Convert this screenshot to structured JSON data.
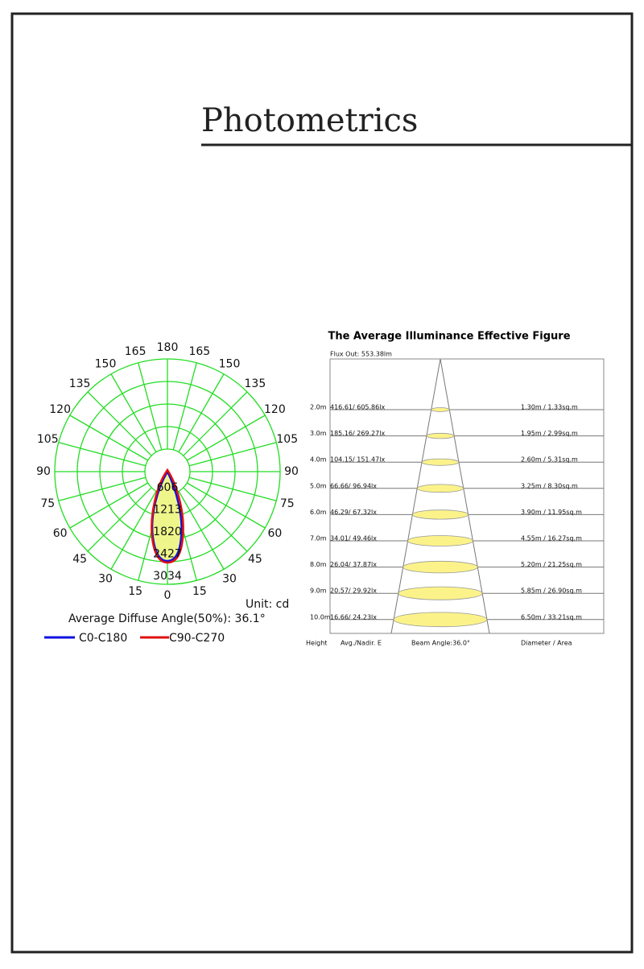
{
  "header": {
    "title": "Photometrics"
  },
  "polar": {
    "angle_labels": [
      "0",
      "15",
      "30",
      "45",
      "60",
      "75",
      "90",
      "105",
      "120",
      "135",
      "150",
      "165",
      "180"
    ],
    "ring_labels": [
      "606",
      "1213",
      "1820",
      "2427",
      "3034"
    ],
    "unit": "Unit: cd",
    "diffuse_angle": "Average Diffuse Angle(50%): 36.1°",
    "legend": [
      "C0-C180",
      "C90-C270"
    ]
  },
  "illuminance": {
    "title": "The Average Illuminance Effective Figure",
    "flux": "Flux Out: 553.38lm",
    "rows": [
      {
        "height": "2.0m",
        "illuminance": "416.61/ 605.86lx",
        "diameter_area": "1.30m / 1.33sq.m"
      },
      {
        "height": "3.0m",
        "illuminance": "185.16/ 269.27lx",
        "diameter_area": "1.95m / 2.99sq.m"
      },
      {
        "height": "4.0m",
        "illuminance": "104.15/ 151.47lx",
        "diameter_area": "2.60m / 5.31sq.m"
      },
      {
        "height": "5.0m",
        "illuminance": "66.66/ 96.94lx",
        "diameter_area": "3.25m / 8.30sq.m"
      },
      {
        "height": "6.0m",
        "illuminance": "46.29/ 67.32lx",
        "diameter_area": "3.90m / 11.95sq.m"
      },
      {
        "height": "7.0m",
        "illuminance": "34.01/ 49.46lx",
        "diameter_area": "4.55m / 16.27sq.m"
      },
      {
        "height": "8.0m",
        "illuminance": "26.04/ 37.87lx",
        "diameter_area": "5.20m / 21.25sq.m"
      },
      {
        "height": "9.0m",
        "illuminance": "20.57/ 29.92lx",
        "diameter_area": "5.85m / 26.90sq.m"
      },
      {
        "height": "10.0m",
        "illuminance": "16.66/ 24.23lx",
        "diameter_area": "6.50m / 33.21sq.m"
      }
    ],
    "footer": [
      "Height",
      "Avg./Nadir. E",
      "Beam Angle:36.0°",
      "Diameter / Area"
    ]
  }
}
